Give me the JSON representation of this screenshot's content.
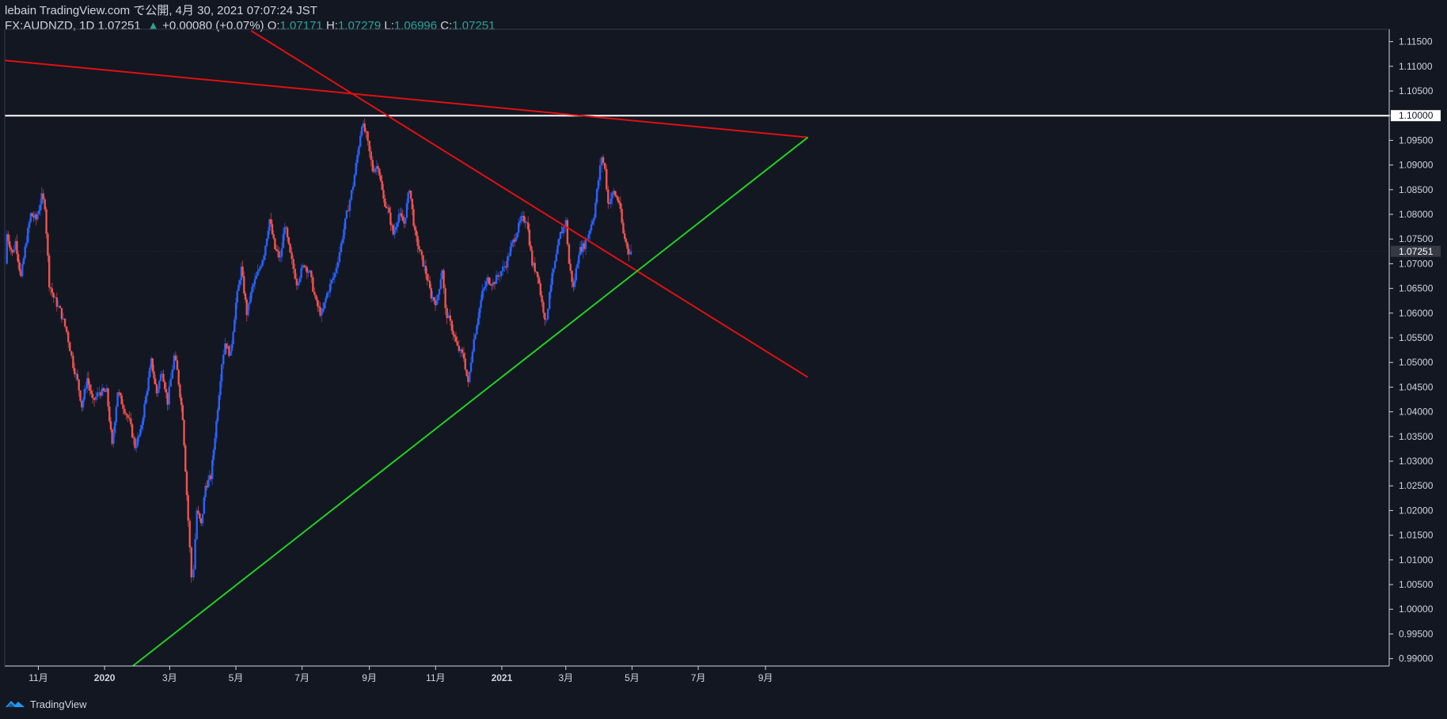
{
  "header": {
    "line1": "lebain TradingView.com で公開, 4月 30, 2021 07:07:24 JST",
    "symbol": "FX:AUDNZD, 1D 1.07251",
    "change": "+0.00080 (+0.07%)",
    "o_label": "O:",
    "o_value": "1.07171",
    "h_label": "H:",
    "h_value": "1.07279",
    "l_label": "L:",
    "l_value": "1.06996",
    "c_label": "C:",
    "c_value": "1.07251"
  },
  "footer": {
    "brand": "TradingView"
  },
  "colors": {
    "background": "#131722",
    "up": "#2962ff",
    "down": "#ef5350",
    "trend_red": "#e01010",
    "trend_green": "#22d022",
    "level": "#ffffff",
    "axis_text": "#d1d4dc",
    "last_price_tag": "#363a45"
  },
  "chart_data": {
    "type": "candlestick",
    "timeframe": "1D",
    "y_axis": {
      "min": 0.9885,
      "max": 1.1175,
      "ticks": [
        "1.11500",
        "1.11000",
        "1.10500",
        "1.10000",
        "1.09500",
        "1.09000",
        "1.08500",
        "1.08000",
        "1.07500",
        "1.07000",
        "1.06500",
        "1.06000",
        "1.05500",
        "1.05000",
        "1.04500",
        "1.04000",
        "1.03500",
        "1.03000",
        "1.02500",
        "1.02000",
        "1.01500",
        "1.01000",
        "1.00500",
        "1.00000",
        "0.99500",
        "0.99000"
      ],
      "highlight_labels": [
        {
          "value": 1.1,
          "label": "1.10000"
        },
        {
          "value": 1.07251,
          "label": "1.07251"
        }
      ]
    },
    "x_axis": {
      "labels": [
        {
          "label": "11月",
          "date": "2019-11-01"
        },
        {
          "label": "2020",
          "date": "2020-01-01"
        },
        {
          "label": "3月",
          "date": "2020-03-01"
        },
        {
          "label": "5月",
          "date": "2020-05-01"
        },
        {
          "label": "7月",
          "date": "2020-07-01"
        },
        {
          "label": "9月",
          "date": "2020-09-01"
        },
        {
          "label": "11月",
          "date": "2020-11-01"
        },
        {
          "label": "2021",
          "date": "2021-01-01"
        },
        {
          "label": "3月",
          "date": "2021-03-01"
        },
        {
          "label": "5月",
          "date": "2021-05-01"
        },
        {
          "label": "7月",
          "date": "2021-07-01"
        },
        {
          "label": "9月",
          "date": "2021-09-01"
        }
      ]
    },
    "close_path": [
      [
        "2019-10-01",
        1.07
      ],
      [
        "2019-10-03",
        1.076
      ],
      [
        "2019-10-08",
        1.072
      ],
      [
        "2019-10-11",
        1.0745
      ],
      [
        "2019-10-16",
        1.0672
      ],
      [
        "2019-10-21",
        1.075
      ],
      [
        "2019-10-25",
        1.08
      ],
      [
        "2019-10-30",
        1.079
      ],
      [
        "2019-11-04",
        1.0835
      ],
      [
        "2019-11-07",
        1.0818
      ],
      [
        "2019-11-11",
        1.066
      ],
      [
        "2019-11-15",
        1.0632
      ],
      [
        "2019-11-21",
        1.0605
      ],
      [
        "2019-11-27",
        1.0562
      ],
      [
        "2019-12-03",
        1.0495
      ],
      [
        "2019-12-07",
        1.0462
      ],
      [
        "2019-12-11",
        1.0412
      ],
      [
        "2019-12-16",
        1.0468
      ],
      [
        "2019-12-21",
        1.042
      ],
      [
        "2019-12-27",
        1.044
      ],
      [
        "2020-01-03",
        1.044
      ],
      [
        "2020-01-08",
        1.033
      ],
      [
        "2020-01-13",
        1.0442
      ],
      [
        "2020-01-18",
        1.0412
      ],
      [
        "2020-01-24",
        1.038
      ],
      [
        "2020-01-29",
        1.033
      ],
      [
        "2020-02-03",
        1.0358
      ],
      [
        "2020-02-08",
        1.043
      ],
      [
        "2020-02-13",
        1.0502
      ],
      [
        "2020-02-18",
        1.0438
      ],
      [
        "2020-02-23",
        1.0485
      ],
      [
        "2020-02-28",
        1.042
      ],
      [
        "2020-03-05",
        1.0512
      ],
      [
        "2020-03-08",
        1.0482
      ],
      [
        "2020-03-13",
        1.039
      ],
      [
        "2020-03-18",
        1.018
      ],
      [
        "2020-03-21",
        1.0065
      ],
      [
        "2020-03-23",
        1.0085
      ],
      [
        "2020-03-26",
        1.02
      ],
      [
        "2020-03-30",
        1.017
      ],
      [
        "2020-04-03",
        1.025
      ],
      [
        "2020-04-08",
        1.0268
      ],
      [
        "2020-04-13",
        1.038
      ],
      [
        "2020-04-18",
        1.05
      ],
      [
        "2020-04-21",
        1.054
      ],
      [
        "2020-04-26",
        1.0515
      ],
      [
        "2020-05-01",
        1.062
      ],
      [
        "2020-05-06",
        1.069
      ],
      [
        "2020-05-11",
        1.06
      ],
      [
        "2020-05-16",
        1.065
      ],
      [
        "2020-05-21",
        1.068
      ],
      [
        "2020-05-27",
        1.0722
      ],
      [
        "2020-06-01",
        1.079
      ],
      [
        "2020-06-06",
        1.073
      ],
      [
        "2020-06-11",
        1.071
      ],
      [
        "2020-06-15",
        1.078
      ],
      [
        "2020-06-20",
        1.0718
      ],
      [
        "2020-06-26",
        1.0662
      ],
      [
        "2020-07-03",
        1.07
      ],
      [
        "2020-07-08",
        1.068
      ],
      [
        "2020-07-14",
        1.062
      ],
      [
        "2020-07-19",
        1.0595
      ],
      [
        "2020-07-24",
        1.064
      ],
      [
        "2020-07-31",
        1.068
      ],
      [
        "2020-08-06",
        1.074
      ],
      [
        "2020-08-11",
        1.08
      ],
      [
        "2020-08-17",
        1.086
      ],
      [
        "2020-08-21",
        1.092
      ],
      [
        "2020-08-25",
        1.0985
      ],
      [
        "2020-08-29",
        1.096
      ],
      [
        "2020-09-04",
        1.089
      ],
      [
        "2020-09-09",
        1.09
      ],
      [
        "2020-09-14",
        1.083
      ],
      [
        "2020-09-18",
        1.081
      ],
      [
        "2020-09-23",
        1.076
      ],
      [
        "2020-09-28",
        1.08
      ],
      [
        "2020-10-03",
        1.0782
      ],
      [
        "2020-10-08",
        1.0855
      ],
      [
        "2020-10-13",
        1.076
      ],
      [
        "2020-10-18",
        1.072
      ],
      [
        "2020-10-23",
        1.0682
      ],
      [
        "2020-10-28",
        1.0635
      ],
      [
        "2020-11-02",
        1.062
      ],
      [
        "2020-11-07",
        1.069
      ],
      [
        "2020-11-10",
        1.0605
      ],
      [
        "2020-11-16",
        1.057
      ],
      [
        "2020-11-21",
        1.053
      ],
      [
        "2020-11-27",
        1.051
      ],
      [
        "2020-12-01",
        1.0455
      ],
      [
        "2020-12-05",
        1.053
      ],
      [
        "2020-12-09",
        1.058
      ],
      [
        "2020-12-14",
        1.064
      ],
      [
        "2020-12-19",
        1.0668
      ],
      [
        "2020-12-24",
        1.066
      ],
      [
        "2020-12-30",
        1.068
      ],
      [
        "2021-01-05",
        1.07
      ],
      [
        "2021-01-09",
        1.073
      ],
      [
        "2021-01-14",
        1.076
      ],
      [
        "2021-01-19",
        1.079
      ],
      [
        "2021-01-24",
        1.079
      ],
      [
        "2021-01-29",
        1.07
      ],
      [
        "2021-02-03",
        1.068
      ],
      [
        "2021-02-07",
        1.062
      ],
      [
        "2021-02-11",
        1.058
      ],
      [
        "2021-02-14",
        1.0648
      ],
      [
        "2021-02-19",
        1.07
      ],
      [
        "2021-02-24",
        1.076
      ],
      [
        "2021-03-01",
        1.0785
      ],
      [
        "2021-03-04",
        1.07
      ],
      [
        "2021-03-08",
        1.065
      ],
      [
        "2021-03-13",
        1.0725
      ],
      [
        "2021-03-18",
        1.0738
      ],
      [
        "2021-03-22",
        1.0762
      ],
      [
        "2021-03-27",
        1.08
      ],
      [
        "2021-03-31",
        1.087
      ],
      [
        "2021-04-03",
        1.0918
      ],
      [
        "2021-04-06",
        1.089
      ],
      [
        "2021-04-09",
        1.0822
      ],
      [
        "2021-04-14",
        1.0845
      ],
      [
        "2021-04-19",
        1.0825
      ],
      [
        "2021-04-23",
        1.076
      ],
      [
        "2021-04-28",
        1.0725
      ],
      [
        "2021-04-30",
        1.07251
      ]
    ],
    "trendlines": [
      {
        "color": "red",
        "p1": [
          "2019-10-01",
          1.1112
        ],
        "p2": [
          "2021-10-10",
          1.0956
        ]
      },
      {
        "color": "red",
        "p1": [
          "2020-05-15",
          1.1172
        ],
        "p2": [
          "2021-10-10",
          1.047
        ]
      },
      {
        "color": "green",
        "p1": [
          "2020-01-27",
          0.9885
        ],
        "p2": [
          "2021-10-10",
          1.0956
        ]
      }
    ],
    "horizontal_levels": [
      {
        "value": 1.1,
        "color": "white"
      }
    ],
    "grid": false,
    "legend": "none"
  }
}
